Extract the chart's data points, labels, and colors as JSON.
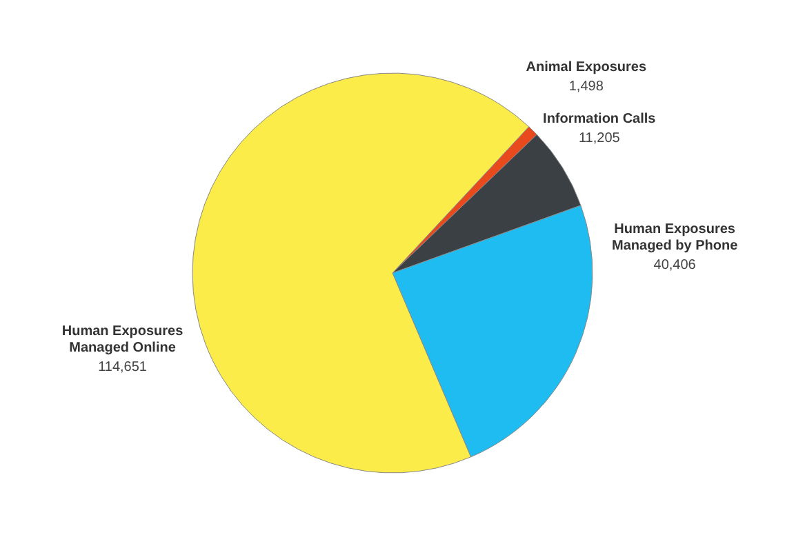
{
  "chart_data": {
    "type": "pie",
    "categories": [
      "Animal Exposures",
      "Information Calls",
      "Human Exposures\nManaged by Phone",
      "Human Exposures\nManaged Online"
    ],
    "values": [
      1498,
      11205,
      40406,
      114651
    ],
    "value_labels": [
      "1,498",
      "11,205",
      "40,406",
      "114,651"
    ],
    "colors": [
      "#e8491d",
      "#3b4045",
      "#1ebcf0",
      "#fbec4a"
    ],
    "legend": false
  }
}
